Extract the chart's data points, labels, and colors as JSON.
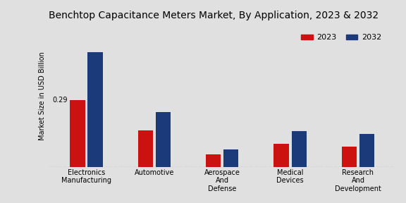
{
  "title": "Benchtop Capacitance Meters Market, By Application, 2023 & 2032",
  "ylabel": "Market Size in USD Billion",
  "categories": [
    "Electronics\nManufacturing",
    "Automotive",
    "Aerospace\nAnd\nDefense",
    "Medical\nDevices",
    "Research\nAnd\nDevelopment"
  ],
  "values_2023": [
    0.29,
    0.16,
    0.055,
    0.1,
    0.09
  ],
  "values_2032": [
    0.5,
    0.24,
    0.078,
    0.155,
    0.145
  ],
  "color_2023": "#cc1111",
  "color_2032": "#1a3a7a",
  "annotation_value": "0.29",
  "background_color": "#e0e0e0",
  "title_fontsize": 10,
  "label_fontsize": 7,
  "tick_fontsize": 7,
  "legend_fontsize": 8,
  "bar_width": 0.22,
  "ylim": [
    0,
    0.62
  ]
}
